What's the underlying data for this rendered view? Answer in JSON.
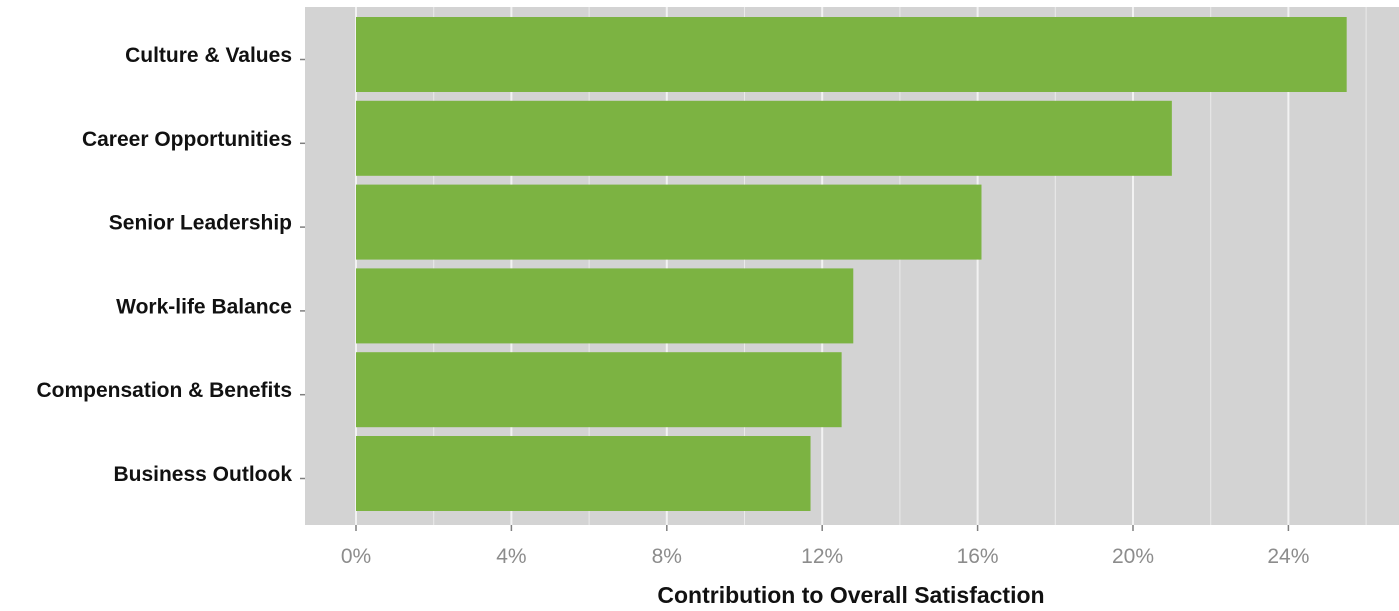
{
  "chart_data": {
    "type": "bar",
    "orientation": "horizontal",
    "title": "",
    "xlabel": "Contribution to Overall Satisfaction",
    "ylabel": "",
    "categories": [
      "Culture & Values",
      "Career Opportunities",
      "Senior Leadership",
      "Work-life Balance",
      "Compensation & Benefits",
      "Business Outlook"
    ],
    "values": [
      25.5,
      21.0,
      16.1,
      12.8,
      12.5,
      11.7
    ],
    "unit": "%",
    "xlim": [
      0,
      26
    ],
    "x_ticks": [
      0,
      4,
      8,
      12,
      16,
      20,
      24
    ],
    "x_tick_labels": [
      "0%",
      "4%",
      "8%",
      "12%",
      "16%",
      "20%",
      "24%"
    ],
    "grid": true,
    "legend": "none",
    "colors": {
      "bar": "#7cb342",
      "panel_background": "#d3d3d3",
      "gridline": "#f2f2f2"
    }
  }
}
